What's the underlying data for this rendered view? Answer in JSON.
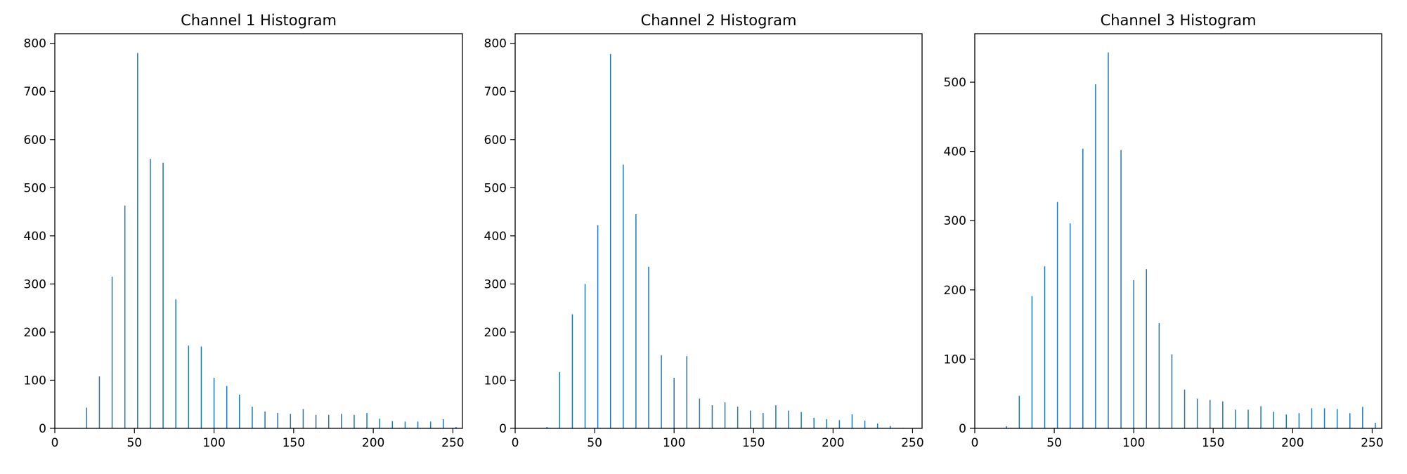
{
  "bar_color": "#1f77b4",
  "chart_data": [
    {
      "type": "bar",
      "title": "Channel 1 Histogram",
      "xlabel": "",
      "ylabel": "",
      "xlim": [
        0,
        256
      ],
      "ylim": [
        0,
        820
      ],
      "xticks": [
        0,
        50,
        100,
        150,
        200,
        250
      ],
      "yticks": [
        0,
        100,
        200,
        300,
        400,
        500,
        600,
        700,
        800
      ],
      "x": [
        20,
        28,
        36,
        44,
        52,
        60,
        68,
        76,
        84,
        92,
        100,
        108,
        116,
        124,
        132,
        140,
        148,
        156,
        164,
        172,
        180,
        188,
        196,
        204,
        212,
        220,
        228,
        236,
        244,
        252
      ],
      "values": [
        43,
        108,
        315,
        463,
        780,
        560,
        552,
        268,
        172,
        170,
        105,
        88,
        70,
        45,
        35,
        32,
        30,
        40,
        28,
        28,
        30,
        28,
        32,
        20,
        15,
        14,
        14,
        14,
        19,
        3
      ]
    },
    {
      "type": "bar",
      "title": "Channel 2 Histogram",
      "xlabel": "",
      "ylabel": "",
      "xlim": [
        0,
        256
      ],
      "ylim": [
        0,
        820
      ],
      "xticks": [
        0,
        50,
        100,
        150,
        200,
        250
      ],
      "yticks": [
        0,
        100,
        200,
        300,
        400,
        500,
        600,
        700,
        800
      ],
      "x": [
        20,
        28,
        36,
        44,
        52,
        60,
        68,
        76,
        84,
        92,
        100,
        108,
        116,
        124,
        132,
        140,
        148,
        156,
        164,
        172,
        180,
        188,
        196,
        204,
        212,
        220,
        228,
        236,
        244
      ],
      "values": [
        3,
        117,
        237,
        300,
        422,
        778,
        548,
        445,
        336,
        152,
        105,
        150,
        62,
        48,
        54,
        45,
        37,
        32,
        48,
        37,
        34,
        22,
        19,
        17,
        29,
        16,
        10,
        5,
        1
      ]
    },
    {
      "type": "bar",
      "title": "Channel 3 Histogram",
      "xlabel": "",
      "ylabel": "",
      "xlim": [
        0,
        256
      ],
      "ylim": [
        0,
        570
      ],
      "xticks": [
        0,
        50,
        100,
        150,
        200,
        250
      ],
      "yticks": [
        0,
        100,
        200,
        300,
        400,
        500
      ],
      "x": [
        20,
        28,
        36,
        44,
        52,
        60,
        68,
        76,
        84,
        92,
        100,
        108,
        116,
        124,
        132,
        140,
        148,
        156,
        164,
        172,
        180,
        188,
        196,
        204,
        212,
        220,
        228,
        236,
        244,
        252
      ],
      "values": [
        3,
        47,
        191,
        234,
        327,
        296,
        404,
        497,
        543,
        402,
        214,
        230,
        152,
        107,
        56,
        43,
        41,
        39,
        27,
        27,
        32,
        24,
        20,
        22,
        29,
        29,
        28,
        22,
        31,
        8
      ]
    }
  ]
}
